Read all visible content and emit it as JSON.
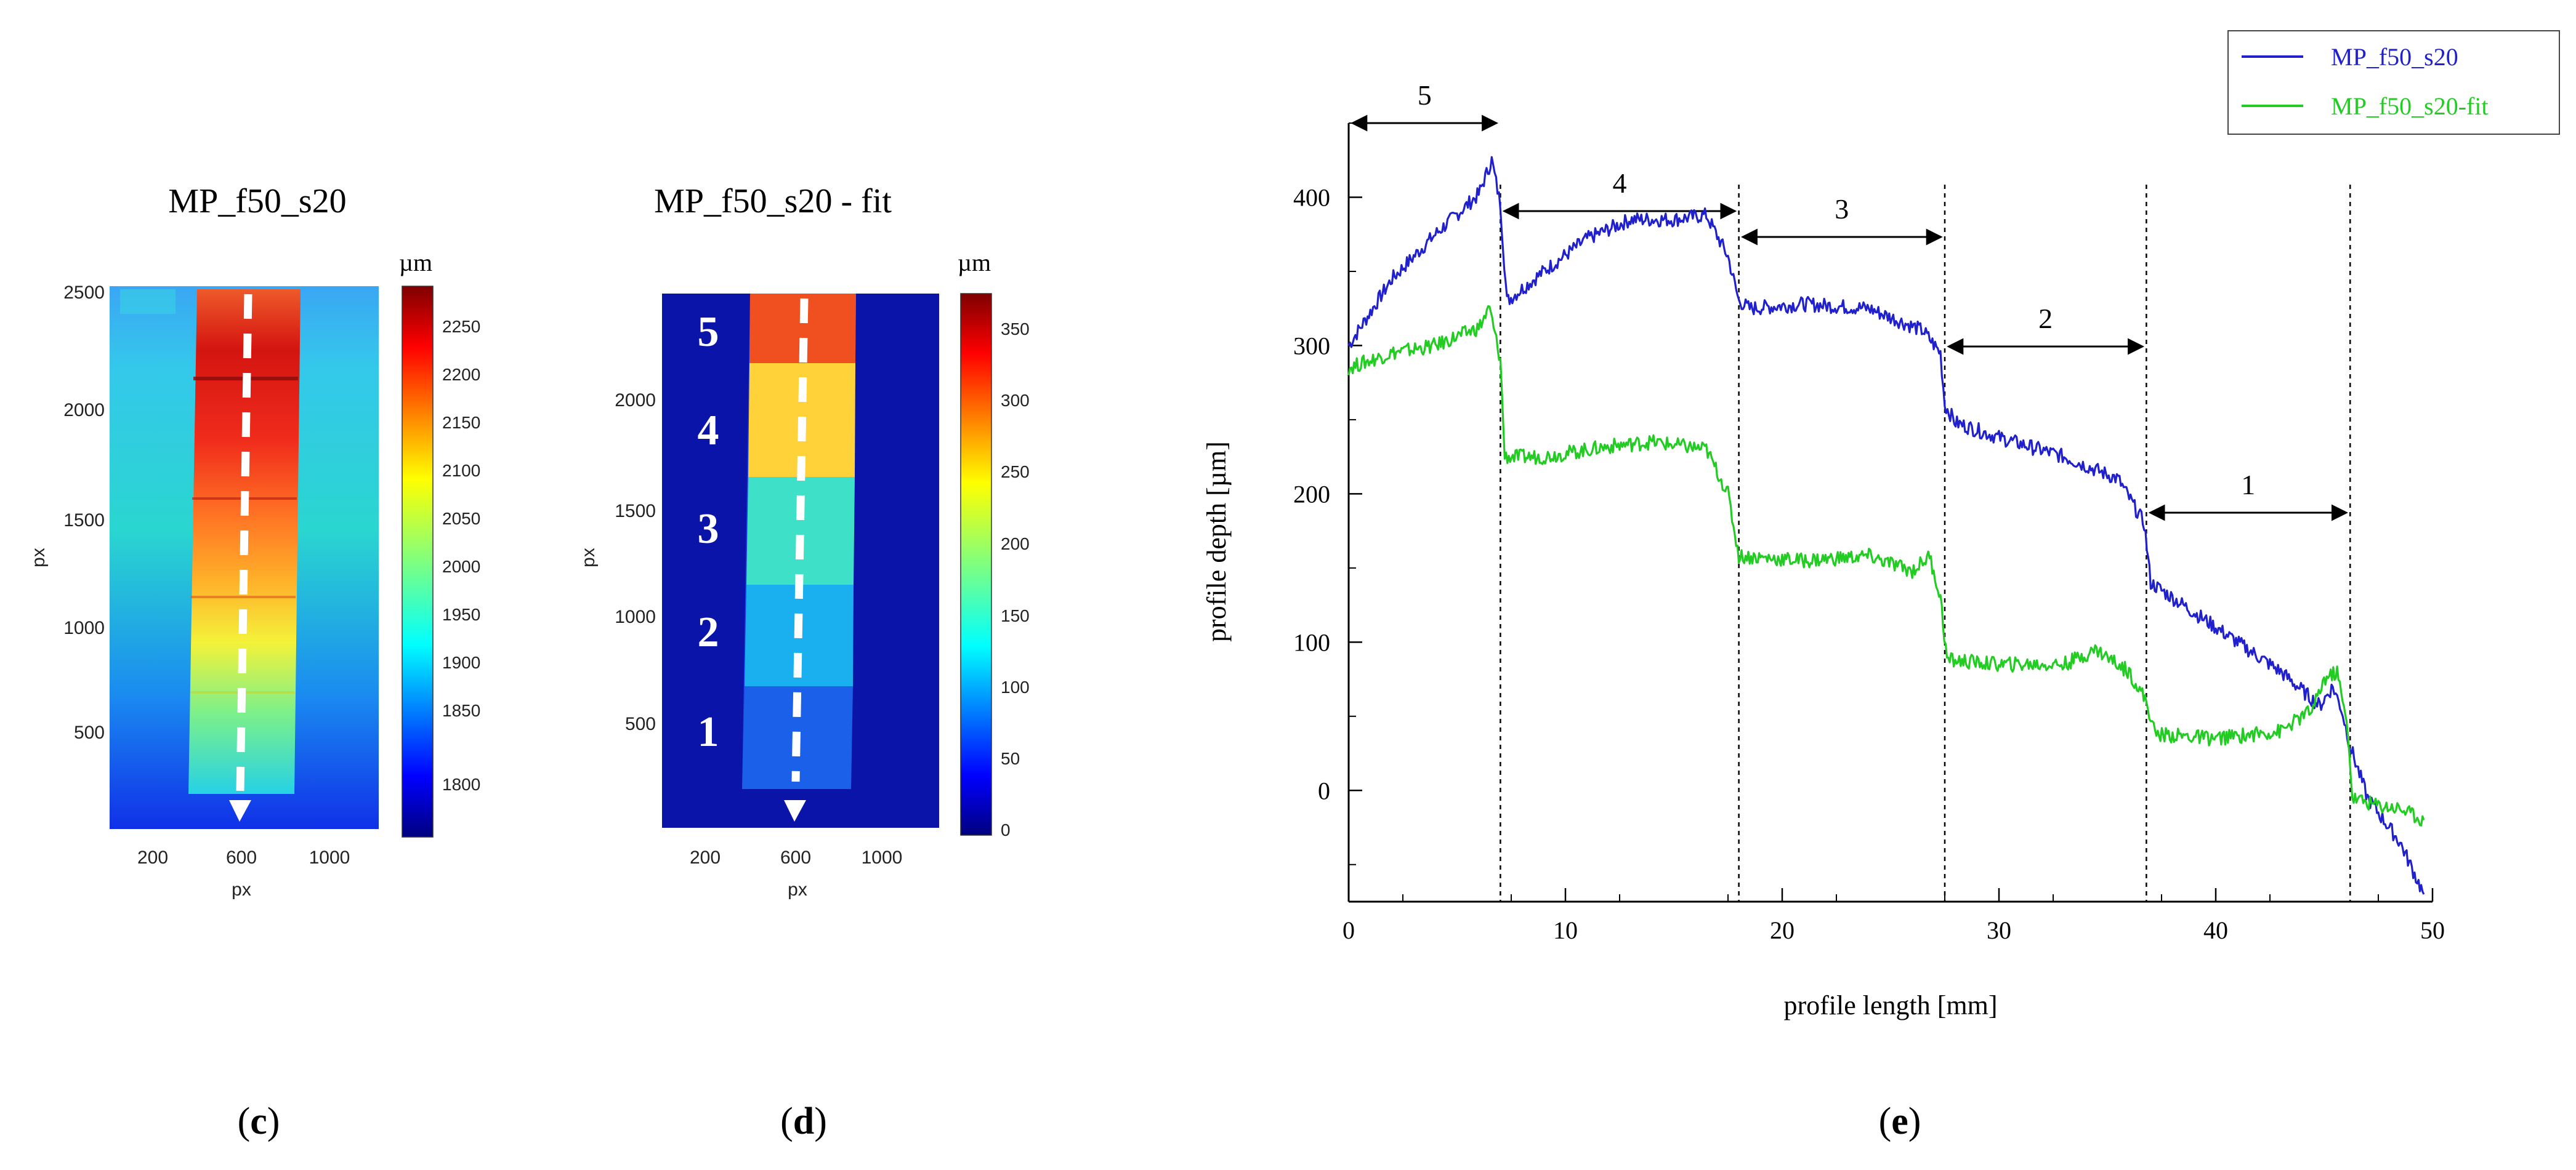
{
  "colors": {
    "blue_series": "#2020cc",
    "green_series": "#22cc22",
    "dark_blue_bg": "#0a14a8"
  },
  "panel_c": {
    "title": "MP_f50_s20",
    "caption": "(c)",
    "caption_letter": "c",
    "xlabel": "px",
    "ylabel": "px",
    "x_ticks": [
      "200",
      "600",
      "1000"
    ],
    "y_ticks": [
      "500",
      "1000",
      "1500",
      "2000",
      "2500"
    ],
    "colorbar_unit": "µm",
    "colorbar_ticks": [
      "2250",
      "2200",
      "2150",
      "2100",
      "2050",
      "2000",
      "1950",
      "1900",
      "1850",
      "1800"
    ]
  },
  "panel_d": {
    "title": "MP_f50_s20 - fit",
    "caption": "(d)",
    "caption_letter": "d",
    "xlabel": "px",
    "ylabel": "px",
    "x_ticks": [
      "200",
      "600",
      "1000"
    ],
    "y_ticks": [
      "500",
      "1000",
      "1500",
      "2000"
    ],
    "colorbar_unit": "µm",
    "colorbar_ticks": [
      "350",
      "300",
      "250",
      "200",
      "150",
      "100",
      "50",
      "0"
    ],
    "step_labels": [
      "5",
      "4",
      "3",
      "2",
      "1"
    ]
  },
  "panel_e": {
    "caption": "(e)",
    "caption_letter": "e",
    "legend": [
      "MP_f50_s20",
      "MP_f50_s20-fit"
    ],
    "step_labels": [
      "5",
      "4",
      "3",
      "2",
      "1"
    ]
  },
  "chart_data": {
    "type": "line",
    "title": "",
    "xlabel": "profile length [mm]",
    "ylabel": "profile depth [µm]",
    "xlim": [
      0,
      50
    ],
    "ylim": [
      -75,
      450
    ],
    "x_ticks": [
      0,
      10,
      20,
      30,
      40,
      50
    ],
    "y_ticks": [
      0,
      100,
      200,
      300,
      400
    ],
    "step_boundaries_mm": [
      0,
      7,
      18,
      27.5,
      36.8,
      46.2
    ],
    "segments": [
      {
        "label": "5",
        "from": 0,
        "to": 7
      },
      {
        "label": "4",
        "from": 7,
        "to": 18
      },
      {
        "label": "3",
        "from": 18,
        "to": 27.5
      },
      {
        "label": "2",
        "from": 27.5,
        "to": 36.8
      },
      {
        "label": "1",
        "from": 36.8,
        "to": 46.2
      }
    ],
    "series": [
      {
        "name": "MP_f50_s20",
        "x": [
          0,
          2,
          4,
          6,
          6.6,
          7.0,
          7.3,
          9,
          11,
          13,
          15,
          16.5,
          17.5,
          18.0,
          18.5,
          21,
          24,
          26.5,
          27.3,
          27.5,
          28.0,
          30,
          33,
          35.5,
          36.7,
          37.0,
          40,
          43,
          44.8,
          45.4,
          45.8,
          46.2,
          47,
          48.5,
          49.6
        ],
        "values": [
          300,
          345,
          375,
          402,
          425,
          395,
          330,
          350,
          372,
          385,
          385,
          388,
          360,
          330,
          325,
          328,
          325,
          310,
          295,
          260,
          248,
          238,
          225,
          210,
          180,
          140,
          110,
          80,
          57,
          70,
          55,
          30,
          -5,
          -35,
          -70
        ]
      },
      {
        "name": "MP_f50_s20-fit",
        "x": [
          0,
          2,
          4,
          6,
          6.5,
          7.0,
          7.2,
          9,
          12,
          14,
          16.5,
          17.5,
          18.0,
          21,
          24,
          26.0,
          26.8,
          27.3,
          27.6,
          30,
          33,
          34.5,
          36.0,
          36.8,
          37.2,
          40,
          43,
          44.5,
          45.0,
          45.6,
          46.1,
          46.3,
          47.5,
          48.5,
          49.6
        ],
        "values": [
          285,
          295,
          300,
          312,
          325,
          290,
          225,
          225,
          232,
          235,
          230,
          200,
          158,
          155,
          158,
          148,
          158,
          130,
          88,
          85,
          85,
          95,
          80,
          60,
          38,
          35,
          40,
          55,
          75,
          80,
          40,
          -5,
          -10,
          -12,
          -20
        ]
      }
    ]
  }
}
